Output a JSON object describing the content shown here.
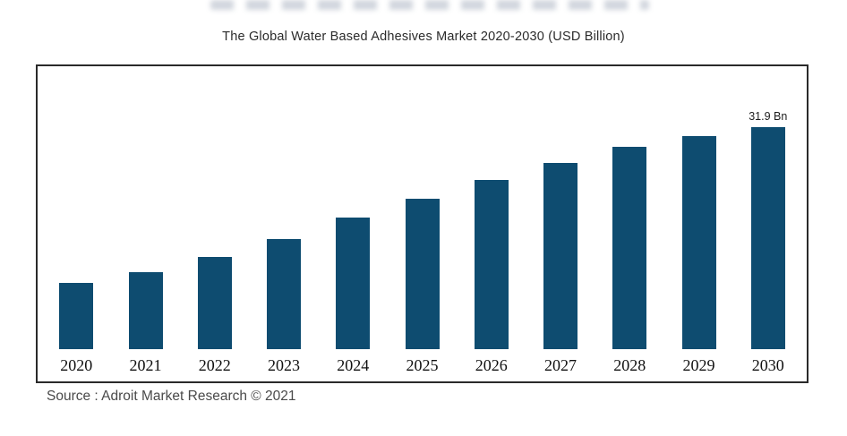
{
  "chart_data": {
    "type": "bar",
    "title": "The Global Water Based Adhesives Market 2020-2030 (USD Billion)",
    "categories": [
      "2020",
      "2021",
      "2022",
      "2023",
      "2024",
      "2025",
      "2026",
      "2027",
      "2028",
      "2029",
      "2030"
    ],
    "values": [
      9.5,
      11.0,
      13.2,
      15.8,
      18.9,
      21.6,
      24.3,
      26.7,
      29.1,
      30.6,
      31.9
    ],
    "unit": "USD Billion",
    "ylim": [
      0,
      34
    ],
    "grid": false,
    "legend": "none",
    "bar_color": "#0e4c70",
    "annotations": [
      {
        "category": "2030",
        "text": "31.9 Bn"
      }
    ],
    "source": "Source : Adroit Market Research © 2021"
  }
}
